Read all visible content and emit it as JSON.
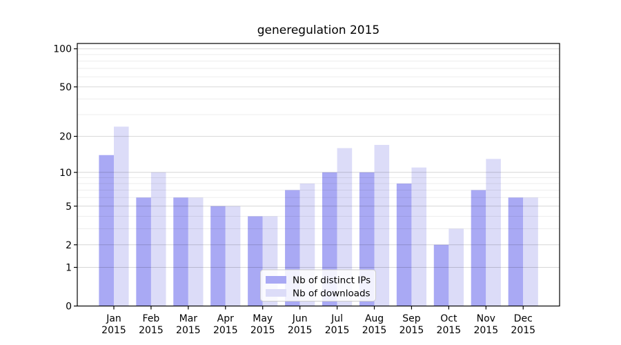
{
  "figure": {
    "title": "generegulation 2015"
  },
  "colors": {
    "ips_bar": "#a9a9f4",
    "downloads_bar": "#dcdcf8",
    "grid_major": "rgba(0,0,0,0.16)",
    "grid_minor": "rgba(0,0,0,0.07)",
    "axis_line": "#000000",
    "text": "#000000",
    "legend_border": "#cccccc",
    "legend_bg": "rgba(255,255,255,0.85)"
  },
  "legend": {
    "items": [
      {
        "label": "Nb of distinct IPs",
        "series": "ips"
      },
      {
        "label": "Nb of downloads",
        "series": "downloads"
      }
    ]
  },
  "axes": {
    "y_tick_values": [
      100,
      50,
      20,
      10,
      5,
      2,
      1,
      0
    ],
    "y_tick_labels": [
      "100",
      "50",
      "20",
      "10",
      "5",
      "2",
      "1",
      "0"
    ],
    "y_minor_values": [
      3,
      4,
      6,
      7,
      8,
      9,
      30,
      40,
      60,
      70,
      80,
      90
    ],
    "x_tick_months": [
      "Jan",
      "Feb",
      "Mar",
      "Apr",
      "May",
      "Jun",
      "Jul",
      "Aug",
      "Sep",
      "Oct",
      "Nov",
      "Dec"
    ],
    "x_tick_year": "2015"
  },
  "chart_data": {
    "type": "bar",
    "title": "generegulation 2015",
    "categories": [
      "Jan 2015",
      "Feb 2015",
      "Mar 2015",
      "Apr 2015",
      "May 2015",
      "Jun 2015",
      "Jul 2015",
      "Aug 2015",
      "Sep 2015",
      "Oct 2015",
      "Nov 2015",
      "Dec 2015"
    ],
    "series": [
      {
        "name": "Nb of distinct IPs",
        "color": "#a9a9f4",
        "values": [
          14,
          6,
          6,
          5,
          4,
          7,
          10,
          10,
          8,
          2,
          7,
          6
        ]
      },
      {
        "name": "Nb of downloads",
        "color": "#dcdcf8",
        "values": [
          24,
          10,
          6,
          5,
          4,
          8,
          16,
          17,
          11,
          3,
          13,
          6
        ]
      }
    ],
    "xlabel": "",
    "ylabel": "",
    "yscale": "log1p",
    "ylim": [
      0,
      110
    ],
    "yticks": [
      0,
      1,
      2,
      5,
      10,
      20,
      50,
      100
    ],
    "yticks_minor": [
      3,
      4,
      6,
      7,
      8,
      9,
      30,
      40,
      60,
      70,
      80,
      90
    ],
    "grid": "on",
    "grid_over_bars": true,
    "legend_position": "lower-center"
  }
}
